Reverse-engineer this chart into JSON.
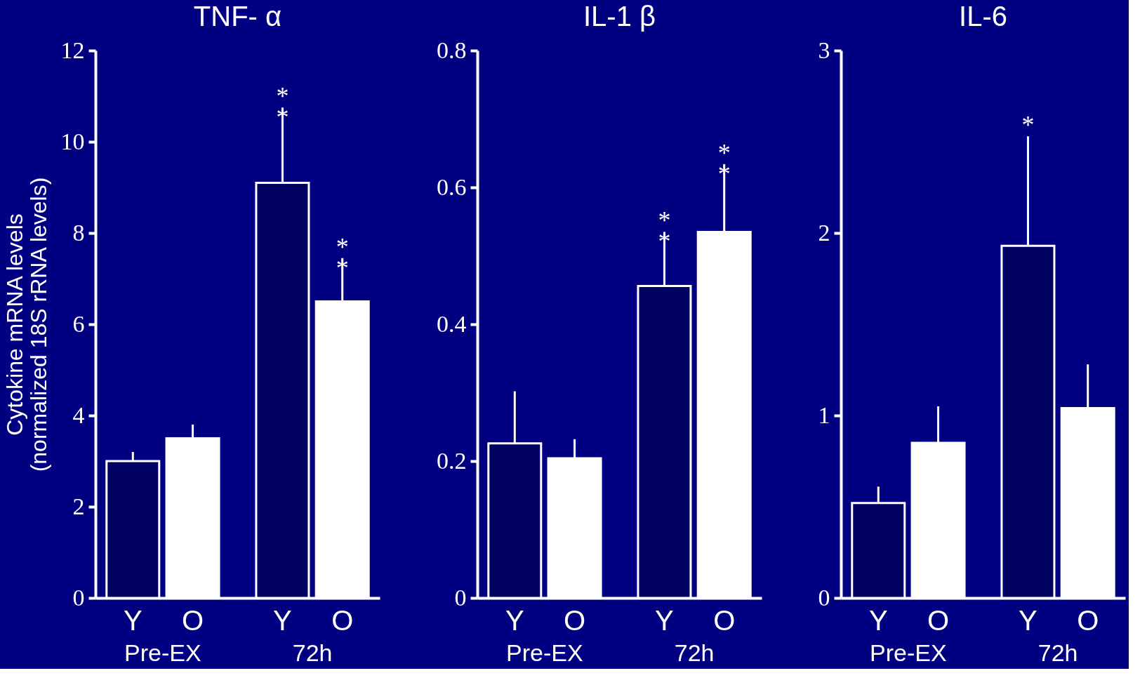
{
  "chart_data": [
    {
      "type": "bar",
      "title": "TNF- α",
      "ylabel": "Cytokine mRNA levels\n(normalized 18S rRNA levels)",
      "categories": [
        "Pre-EX",
        "72h"
      ],
      "series": [
        {
          "name": "Y",
          "color": "#000060",
          "values": [
            3.0,
            9.1
          ],
          "errors": [
            [
              3.0,
              3.2
            ],
            [
              9.1,
              10.75
            ]
          ]
        },
        {
          "name": "O",
          "color": "#ffffff",
          "values": [
            3.5,
            6.5
          ],
          "errors": [
            [
              3.5,
              3.8
            ],
            [
              6.5,
              7.45
            ]
          ]
        }
      ],
      "ylim": [
        0,
        12
      ],
      "yticks": [
        0,
        2,
        4,
        6,
        8,
        10,
        12
      ],
      "grid": false,
      "annotations": [
        "*\n*",
        "*\n*"
      ]
    },
    {
      "type": "bar",
      "title": "IL-1 β",
      "categories": [
        "Pre-EX",
        "72h"
      ],
      "series": [
        {
          "name": "Y",
          "color": "#000060",
          "values": [
            0.226,
            0.456
          ],
          "errors": [
            [
              0.226,
              0.302
            ],
            [
              0.456,
              0.535
            ]
          ]
        },
        {
          "name": "O",
          "color": "#ffffff",
          "values": [
            0.204,
            0.535
          ],
          "errors": [
            [
              0.204,
              0.232
            ],
            [
              0.535,
              0.634
            ]
          ]
        }
      ],
      "ylim": [
        0,
        0.8
      ],
      "yticks": [
        0,
        0.2,
        0.4,
        0.6,
        0.8
      ],
      "grid": false,
      "annotations": [
        "*\n*",
        "*\n*"
      ]
    },
    {
      "type": "bar",
      "title": "IL-6",
      "categories": [
        "Pre-EX",
        "72h"
      ],
      "series": [
        {
          "name": "Y",
          "color": "#000060",
          "values": [
            0.52,
            1.93
          ],
          "errors": [
            [
              0.52,
              0.61
            ],
            [
              1.93,
              2.53
            ]
          ]
        },
        {
          "name": "O",
          "color": "#ffffff",
          "values": [
            0.85,
            1.04
          ],
          "errors": [
            [
              0.85,
              1.05
            ],
            [
              1.04,
              1.28
            ]
          ]
        }
      ],
      "ylim": [
        0,
        3
      ],
      "yticks": [
        0,
        1,
        2,
        3
      ],
      "grid": false,
      "annotations": [
        "*"
      ]
    }
  ]
}
